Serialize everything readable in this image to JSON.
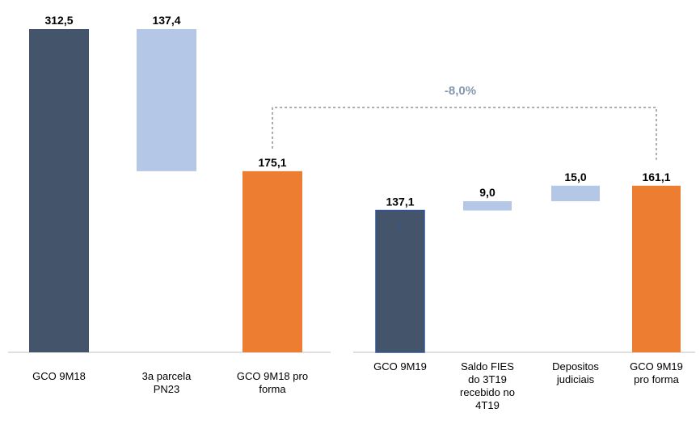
{
  "colors": {
    "dark": "#44546a",
    "light": "#b4c7e7",
    "orange": "#ed7d31",
    "axis": "#bfbfbf",
    "bracket": "#595959",
    "pct": "#8497b0"
  },
  "chart_data": [
    {
      "type": "bar",
      "subtype": "waterfall",
      "categories": [
        "GCO 9M18",
        "3a parcela PN23",
        "GCO 9M18 pro forma"
      ],
      "bars": [
        {
          "label": "312,5",
          "start": 0,
          "end": 312.5,
          "color": "dark"
        },
        {
          "label": "137,4",
          "start": 175.1,
          "end": 312.5,
          "color": "light"
        },
        {
          "label": "175,1",
          "start": 0,
          "end": 175.1,
          "color": "orange"
        }
      ],
      "ylim": [
        0,
        312.5
      ],
      "grid": false,
      "legend": "none"
    },
    {
      "type": "bar",
      "subtype": "waterfall",
      "categories": [
        "GCO 9M19",
        "Saldo FIES do 3T19 recebido no 4T19",
        "Depositos judiciais",
        "GCO 9M19 pro forma"
      ],
      "bars": [
        {
          "label": "137,1",
          "start": 0,
          "end": 137.1,
          "color": "dark"
        },
        {
          "label": "9,0",
          "start": 137.1,
          "end": 146.1,
          "color": "light"
        },
        {
          "label": "15,0",
          "start": 146.1,
          "end": 161.1,
          "color": "light"
        },
        {
          "label": "161,1",
          "start": 0,
          "end": 161.1,
          "color": "orange"
        }
      ],
      "ylim": [
        0,
        312.5
      ],
      "grid": false,
      "legend": "none",
      "annotation": {
        "text": "-8,0%",
        "from": "GCO 9M18 pro forma",
        "to": "GCO 9M19 pro forma"
      }
    }
  ]
}
